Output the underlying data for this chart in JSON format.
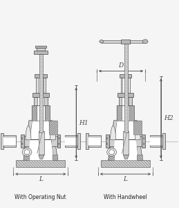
{
  "bg_color": "#f5f5f5",
  "line_color": "#888888",
  "dark_line": "#444444",
  "mid_line": "#777777",
  "light_fill": "#e8e8e8",
  "mid_fill": "#d0d0d0",
  "dark_fill": "#b8b8b8",
  "hatch_fill": "#c0c0c0",
  "label1": "With Operating Nut",
  "label2": "With Handwheel",
  "dim_D": "D",
  "dim_H1": "H1",
  "dim_H2": "H2",
  "dim_L": "L",
  "font_size_label": 5.5,
  "font_size_dim": 6.5
}
